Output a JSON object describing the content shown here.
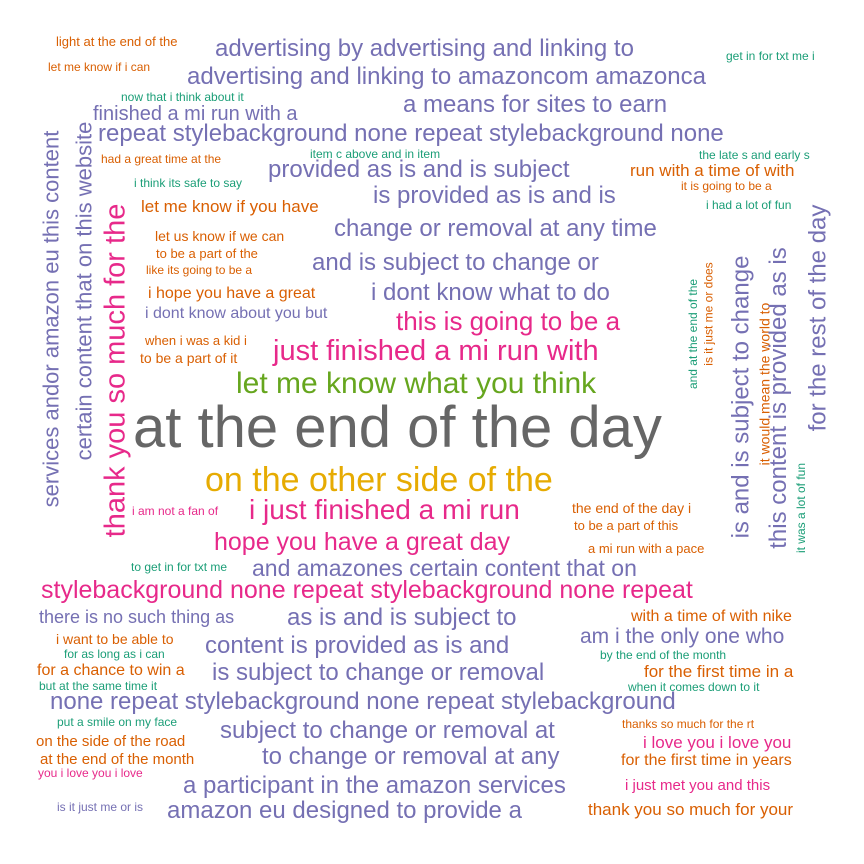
{
  "colors": {
    "gray": "#666666",
    "purple": "#7570B3",
    "pink": "#E7298A",
    "gold": "#E6AB02",
    "green": "#66A61E",
    "orange": "#D95F02",
    "teal": "#1B9E77"
  },
  "phrases": [
    {
      "text": "light at the end of the",
      "color": "orange"
    },
    {
      "text": "advertising by advertising and linking to",
      "color": "purple"
    },
    {
      "text": "get in for txt me i",
      "color": "teal"
    },
    {
      "text": "let me know if i can",
      "color": "orange"
    },
    {
      "text": "advertising and linking to amazoncom amazonca",
      "color": "purple"
    },
    {
      "text": "now that i think about it",
      "color": "teal"
    },
    {
      "text": "finished a mi run with a",
      "color": "purple"
    },
    {
      "text": "a means for sites to earn",
      "color": "purple"
    },
    {
      "text": "repeat stylebackground none repeat stylebackground none",
      "color": "purple"
    },
    {
      "text": "item c above and in item",
      "color": "teal"
    },
    {
      "text": "had a great time at the",
      "color": "orange"
    },
    {
      "text": "the late s and early s",
      "color": "teal"
    },
    {
      "text": "provided as is and is subject",
      "color": "purple"
    },
    {
      "text": "run with a time of with",
      "color": "orange"
    },
    {
      "text": "i think its safe to say",
      "color": "teal"
    },
    {
      "text": "is provided as is and is",
      "color": "purple"
    },
    {
      "text": "it is going to be a",
      "color": "orange"
    },
    {
      "text": "let me know if you have",
      "color": "orange"
    },
    {
      "text": "i had a lot of fun",
      "color": "teal"
    },
    {
      "text": "change or removal at any time",
      "color": "purple"
    },
    {
      "text": "let us know if we can",
      "color": "orange"
    },
    {
      "text": "to be a part of the",
      "color": "orange"
    },
    {
      "text": "and is subject to change or",
      "color": "purple"
    },
    {
      "text": "like its going to be a",
      "color": "orange"
    },
    {
      "text": "i hope you have a great",
      "color": "orange"
    },
    {
      "text": "i dont know what to do",
      "color": "purple"
    },
    {
      "text": "i dont know about you but",
      "color": "purple"
    },
    {
      "text": "this is going to be a",
      "color": "pink"
    },
    {
      "text": "when i was a kid i",
      "color": "orange"
    },
    {
      "text": "just finished a mi run with",
      "color": "pink"
    },
    {
      "text": "to be a part of it",
      "color": "orange"
    },
    {
      "text": "let me know what you think",
      "color": "green"
    },
    {
      "text": "at the end of the day",
      "color": "gray"
    },
    {
      "text": "on the other side of the",
      "color": "gold"
    },
    {
      "text": "i am not a fan of",
      "color": "pink"
    },
    {
      "text": "i just finished a mi run",
      "color": "pink"
    },
    {
      "text": "the end of the day i",
      "color": "orange"
    },
    {
      "text": "to be a part of this",
      "color": "orange"
    },
    {
      "text": "hope you have a great day",
      "color": "pink"
    },
    {
      "text": "a mi run with a pace",
      "color": "orange"
    },
    {
      "text": "to get in for txt me",
      "color": "teal"
    },
    {
      "text": "and amazones certain content that on",
      "color": "purple"
    },
    {
      "text": "stylebackground none repeat stylebackground none repeat",
      "color": "pink"
    },
    {
      "text": "there is no such thing as",
      "color": "purple"
    },
    {
      "text": "as is and is subject to",
      "color": "purple"
    },
    {
      "text": "with a time of with nike",
      "color": "orange"
    },
    {
      "text": "i want to be able to",
      "color": "orange"
    },
    {
      "text": "content is provided as is and",
      "color": "purple"
    },
    {
      "text": "am i the only one who",
      "color": "purple"
    },
    {
      "text": "for as long as i can",
      "color": "teal"
    },
    {
      "text": "by the end of the month",
      "color": "teal"
    },
    {
      "text": "for a chance to win a",
      "color": "orange"
    },
    {
      "text": "is subject to change or removal",
      "color": "purple"
    },
    {
      "text": "for the first time in a",
      "color": "orange"
    },
    {
      "text": "but at the same time it",
      "color": "teal"
    },
    {
      "text": "when it comes down to it",
      "color": "teal"
    },
    {
      "text": "none repeat stylebackground none repeat stylebackground",
      "color": "purple"
    },
    {
      "text": "put a smile on my face",
      "color": "teal"
    },
    {
      "text": "subject to change or removal at",
      "color": "purple"
    },
    {
      "text": "thanks so much for the rt",
      "color": "orange"
    },
    {
      "text": "on the side of the road",
      "color": "orange"
    },
    {
      "text": "i love you i love you",
      "color": "pink"
    },
    {
      "text": "at the end of the month",
      "color": "orange"
    },
    {
      "text": "to change or removal at any",
      "color": "purple"
    },
    {
      "text": "for the first time in years",
      "color": "orange"
    },
    {
      "text": "you i love you i love",
      "color": "pink"
    },
    {
      "text": "a participant in the amazon services",
      "color": "purple"
    },
    {
      "text": "i just met you and this",
      "color": "pink"
    },
    {
      "text": "is it just me or is",
      "color": "purple"
    },
    {
      "text": "amazon eu designed to provide a",
      "color": "purple"
    },
    {
      "text": "thank you so much for your",
      "color": "orange"
    },
    {
      "text": "services andor amazon eu this content",
      "color": "purple"
    },
    {
      "text": "certain content that on this website",
      "color": "purple"
    },
    {
      "text": "thank you so much for the",
      "color": "pink"
    },
    {
      "text": "and at the end of the",
      "color": "teal"
    },
    {
      "text": "is it just me or does",
      "color": "orange"
    },
    {
      "text": "it would mean the world to",
      "color": "orange"
    },
    {
      "text": "is and is subject to change",
      "color": "purple"
    },
    {
      "text": "this content is provided as is",
      "color": "purple"
    },
    {
      "text": "it was a lot of fun",
      "color": "teal"
    },
    {
      "text": "for the rest of the day",
      "color": "purple"
    }
  ]
}
